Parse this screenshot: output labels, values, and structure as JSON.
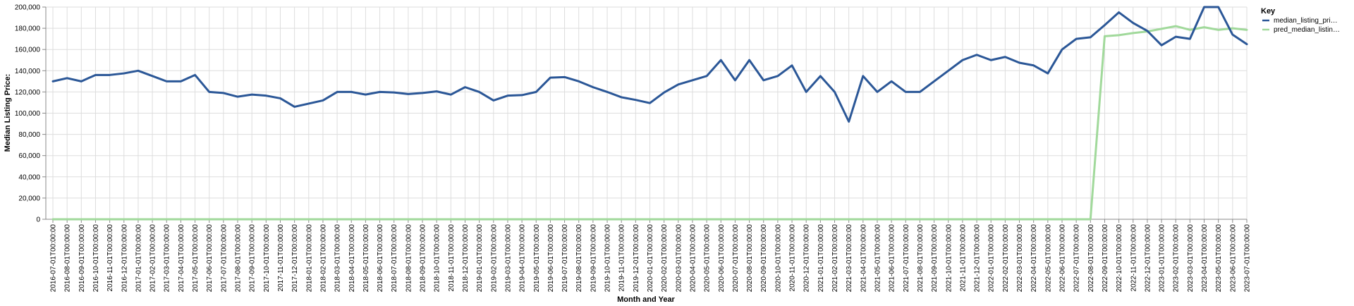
{
  "chart_data": {
    "type": "line",
    "xlabel": "Month and Year",
    "ylabel": "Median Listing Price:",
    "ylim": [
      0,
      200000
    ],
    "yticks": [
      0,
      20000,
      40000,
      60000,
      80000,
      100000,
      120000,
      140000,
      160000,
      180000,
      200000
    ],
    "ytick_labels": [
      "0",
      "20,000",
      "40,000",
      "60,000",
      "80,000",
      "100,000",
      "120,000",
      "140,000",
      "160,000",
      "180,000",
      "200,000"
    ],
    "grid": true,
    "legend_placement": "top-right",
    "legend_title": "Key",
    "categories": [
      "2016-07-01T00:00:00",
      "2016-08-01T00:00:00",
      "2016-09-01T00:00:00",
      "2016-10-01T00:00:00",
      "2016-11-01T00:00:00",
      "2016-12-01T00:00:00",
      "2017-01-01T00:00:00",
      "2017-02-01T00:00:00",
      "2017-03-01T00:00:00",
      "2017-04-01T00:00:00",
      "2017-05-01T00:00:00",
      "2017-06-01T00:00:00",
      "2017-07-01T00:00:00",
      "2017-08-01T00:00:00",
      "2017-09-01T00:00:00",
      "2017-10-01T00:00:00",
      "2017-11-01T00:00:00",
      "2017-12-01T00:00:00",
      "2018-01-01T00:00:00",
      "2018-02-01T00:00:00",
      "2018-03-01T00:00:00",
      "2018-04-01T00:00:00",
      "2018-05-01T00:00:00",
      "2018-06-01T00:00:00",
      "2018-07-01T00:00:00",
      "2018-08-01T00:00:00",
      "2018-09-01T00:00:00",
      "2018-10-01T00:00:00",
      "2018-11-01T00:00:00",
      "2018-12-01T00:00:00",
      "2019-01-01T00:00:00",
      "2019-02-01T00:00:00",
      "2019-03-01T00:00:00",
      "2019-04-01T00:00:00",
      "2019-05-01T00:00:00",
      "2019-06-01T00:00:00",
      "2019-07-01T00:00:00",
      "2019-08-01T00:00:00",
      "2019-09-01T00:00:00",
      "2019-10-01T00:00:00",
      "2019-11-01T00:00:00",
      "2019-12-01T00:00:00",
      "2020-01-01T00:00:00",
      "2020-02-01T00:00:00",
      "2020-03-01T00:00:00",
      "2020-04-01T00:00:00",
      "2020-05-01T00:00:00",
      "2020-06-01T00:00:00",
      "2020-07-01T00:00:00",
      "2020-08-01T00:00:00",
      "2020-09-01T00:00:00",
      "2020-10-01T00:00:00",
      "2020-11-01T00:00:00",
      "2020-12-01T00:00:00",
      "2021-01-01T00:00:00",
      "2021-02-01T00:00:00",
      "2021-03-01T00:00:00",
      "2021-04-01T00:00:00",
      "2021-05-01T00:00:00",
      "2021-06-01T00:00:00",
      "2021-07-01T00:00:00",
      "2021-08-01T00:00:00",
      "2021-09-01T00:00:00",
      "2021-10-01T00:00:00",
      "2021-11-01T00:00:00",
      "2021-12-01T00:00:00",
      "2022-01-01T00:00:00",
      "2022-02-01T00:00:00",
      "2022-03-01T00:00:00",
      "2022-04-01T00:00:00",
      "2022-05-01T00:00:00",
      "2022-06-01T00:00:00",
      "2022-07-01T00:00:00",
      "2022-08-01T00:00:00",
      "2022-09-01T00:00:00",
      "2022-10-01T00:00:00",
      "2022-11-01T00:00:00",
      "2022-12-01T00:00:00",
      "2023-01-01T00:00:00",
      "2023-02-01T00:00:00",
      "2023-03-01T00:00:00",
      "2023-04-01T00:00:00",
      "2023-05-01T00:00:00",
      "2023-06-01T00:00:00",
      "2023-07-01T00:00:00"
    ],
    "series": [
      {
        "name": "median_listing_pri…",
        "color": "#2b5797",
        "values": [
          130000,
          133000,
          130000,
          136000,
          136000,
          137500,
          140000,
          135000,
          130000,
          130000,
          136000,
          120000,
          119000,
          115500,
          117500,
          116500,
          114000,
          106000,
          109000,
          112000,
          120000,
          120000,
          117500,
          120000,
          119500,
          118000,
          119000,
          120500,
          117500,
          124500,
          120000,
          112000,
          116500,
          117000,
          120000,
          133500,
          134000,
          130000,
          124500,
          120000,
          115000,
          112500,
          109500,
          119500,
          127000,
          131000,
          135000,
          150000,
          131000,
          150000,
          131000,
          135000,
          145000,
          120000,
          135000,
          120000,
          92000,
          135000,
          120000,
          130000,
          120000,
          120000,
          130000,
          140000,
          150000,
          155000,
          150000,
          153000,
          147500,
          145000,
          137500,
          160000,
          170000,
          171500,
          183000,
          195000,
          185000,
          177500,
          164000,
          172000,
          170000,
          200000,
          200000,
          174000,
          165000
        ]
      },
      {
        "name": "pred_median_listin…",
        "color": "#a1d99b",
        "values": [
          0,
          0,
          0,
          0,
          0,
          0,
          0,
          0,
          0,
          0,
          0,
          0,
          0,
          0,
          0,
          0,
          0,
          0,
          0,
          0,
          0,
          0,
          0,
          0,
          0,
          0,
          0,
          0,
          0,
          0,
          0,
          0,
          0,
          0,
          0,
          0,
          0,
          0,
          0,
          0,
          0,
          0,
          0,
          0,
          0,
          0,
          0,
          0,
          0,
          0,
          0,
          0,
          0,
          0,
          0,
          0,
          0,
          0,
          0,
          0,
          0,
          0,
          0,
          0,
          0,
          0,
          0,
          0,
          0,
          0,
          0,
          0,
          0,
          0,
          172500,
          173500,
          175500,
          177000,
          179500,
          182000,
          178500,
          181000,
          178500,
          180000,
          178500
        ]
      }
    ]
  }
}
